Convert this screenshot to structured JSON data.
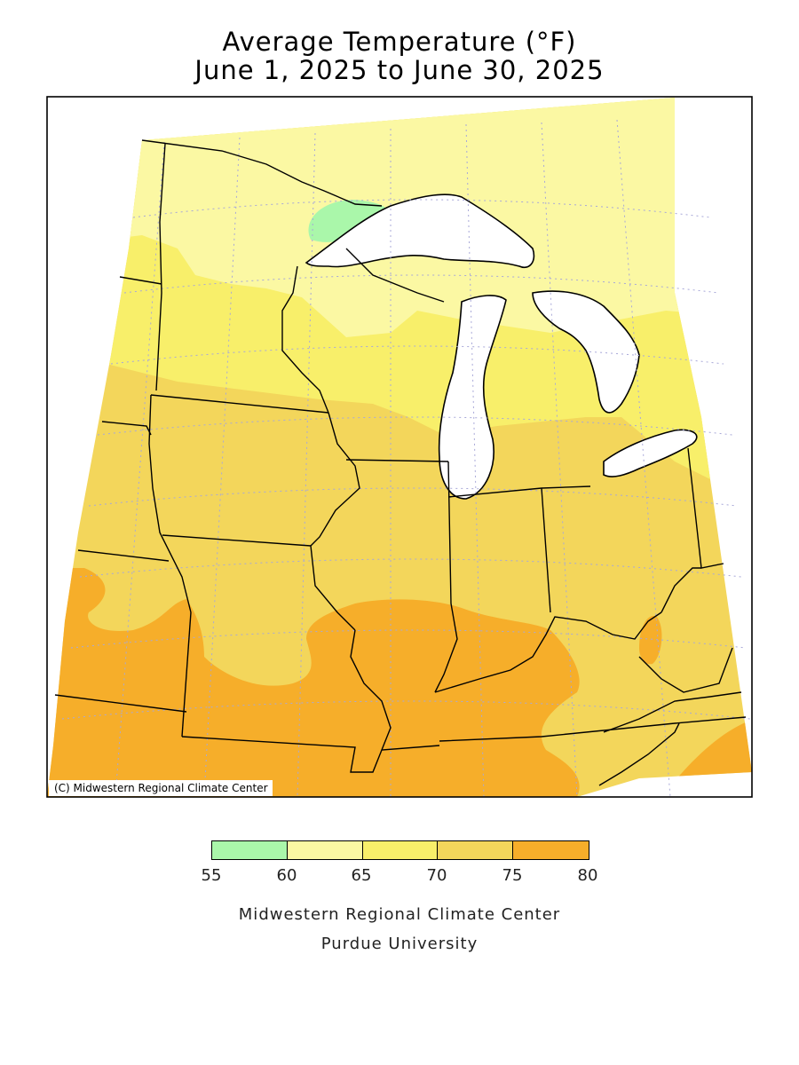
{
  "title": {
    "line1": "Average Temperature (°F)",
    "line2": "June 1, 2025 to June 30, 2025"
  },
  "map": {
    "copyright": "(C) Midwestern Regional Climate Center",
    "variable": "Average Temperature",
    "units": "°F"
  },
  "legend": {
    "bins": [
      {
        "min": 55,
        "max": 60,
        "color": "#aaf7aa"
      },
      {
        "min": 60,
        "max": 65,
        "color": "#fbf8a3"
      },
      {
        "min": 65,
        "max": 70,
        "color": "#f8ef6a"
      },
      {
        "min": 70,
        "max": 75,
        "color": "#f3d65b"
      },
      {
        "min": 75,
        "max": 80,
        "color": "#f6ae2a"
      }
    ],
    "ticks": [
      "55",
      "60",
      "65",
      "70",
      "75",
      "80"
    ]
  },
  "footer": {
    "line1": "Midwestern Regional Climate Center",
    "line2": "Purdue University"
  }
}
